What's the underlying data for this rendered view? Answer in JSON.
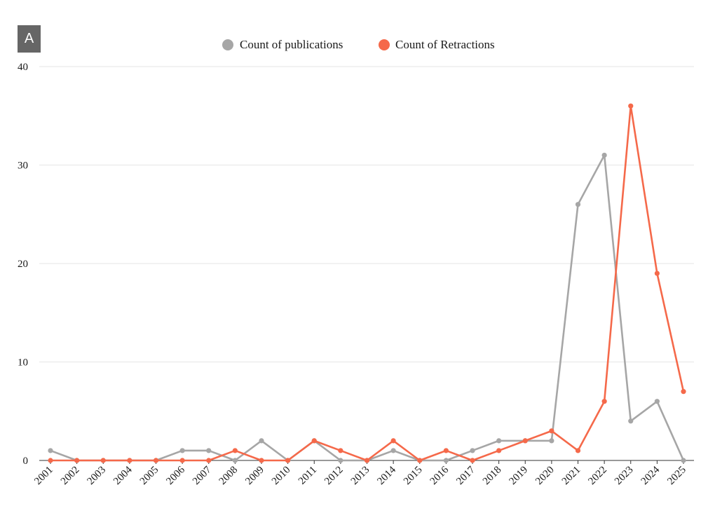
{
  "panel_label": "A",
  "colors": {
    "publications": "#a6a6a6",
    "retractions": "#f5694a"
  },
  "chart_data": {
    "type": "line",
    "title": "",
    "xlabel": "",
    "ylabel": "",
    "ylim": [
      0,
      40
    ],
    "yticks": [
      0,
      10,
      20,
      30,
      40
    ],
    "grid": true,
    "legend_position": "top-center",
    "categories": [
      "2001",
      "2002",
      "2003",
      "2004",
      "2005",
      "2006",
      "2007",
      "2008",
      "2009",
      "2010",
      "2011",
      "2012",
      "2013",
      "2014",
      "2015",
      "2016",
      "2017",
      "2018",
      "2019",
      "2020",
      "2021",
      "2022",
      "2023",
      "2024",
      "2025"
    ],
    "series": [
      {
        "name": "Count of publications",
        "color": "#a6a6a6",
        "values": [
          1,
          0,
          0,
          0,
          0,
          1,
          1,
          0,
          2,
          0,
          2,
          0,
          0,
          1,
          0,
          0,
          1,
          2,
          2,
          2,
          26,
          31,
          4,
          6,
          0
        ]
      },
      {
        "name": "Count of Retractions",
        "color": "#f5694a",
        "values": [
          0,
          0,
          0,
          0,
          0,
          0,
          0,
          1,
          0,
          0,
          2,
          1,
          0,
          2,
          0,
          1,
          0,
          1,
          2,
          3,
          1,
          6,
          36,
          19,
          7
        ]
      }
    ]
  }
}
